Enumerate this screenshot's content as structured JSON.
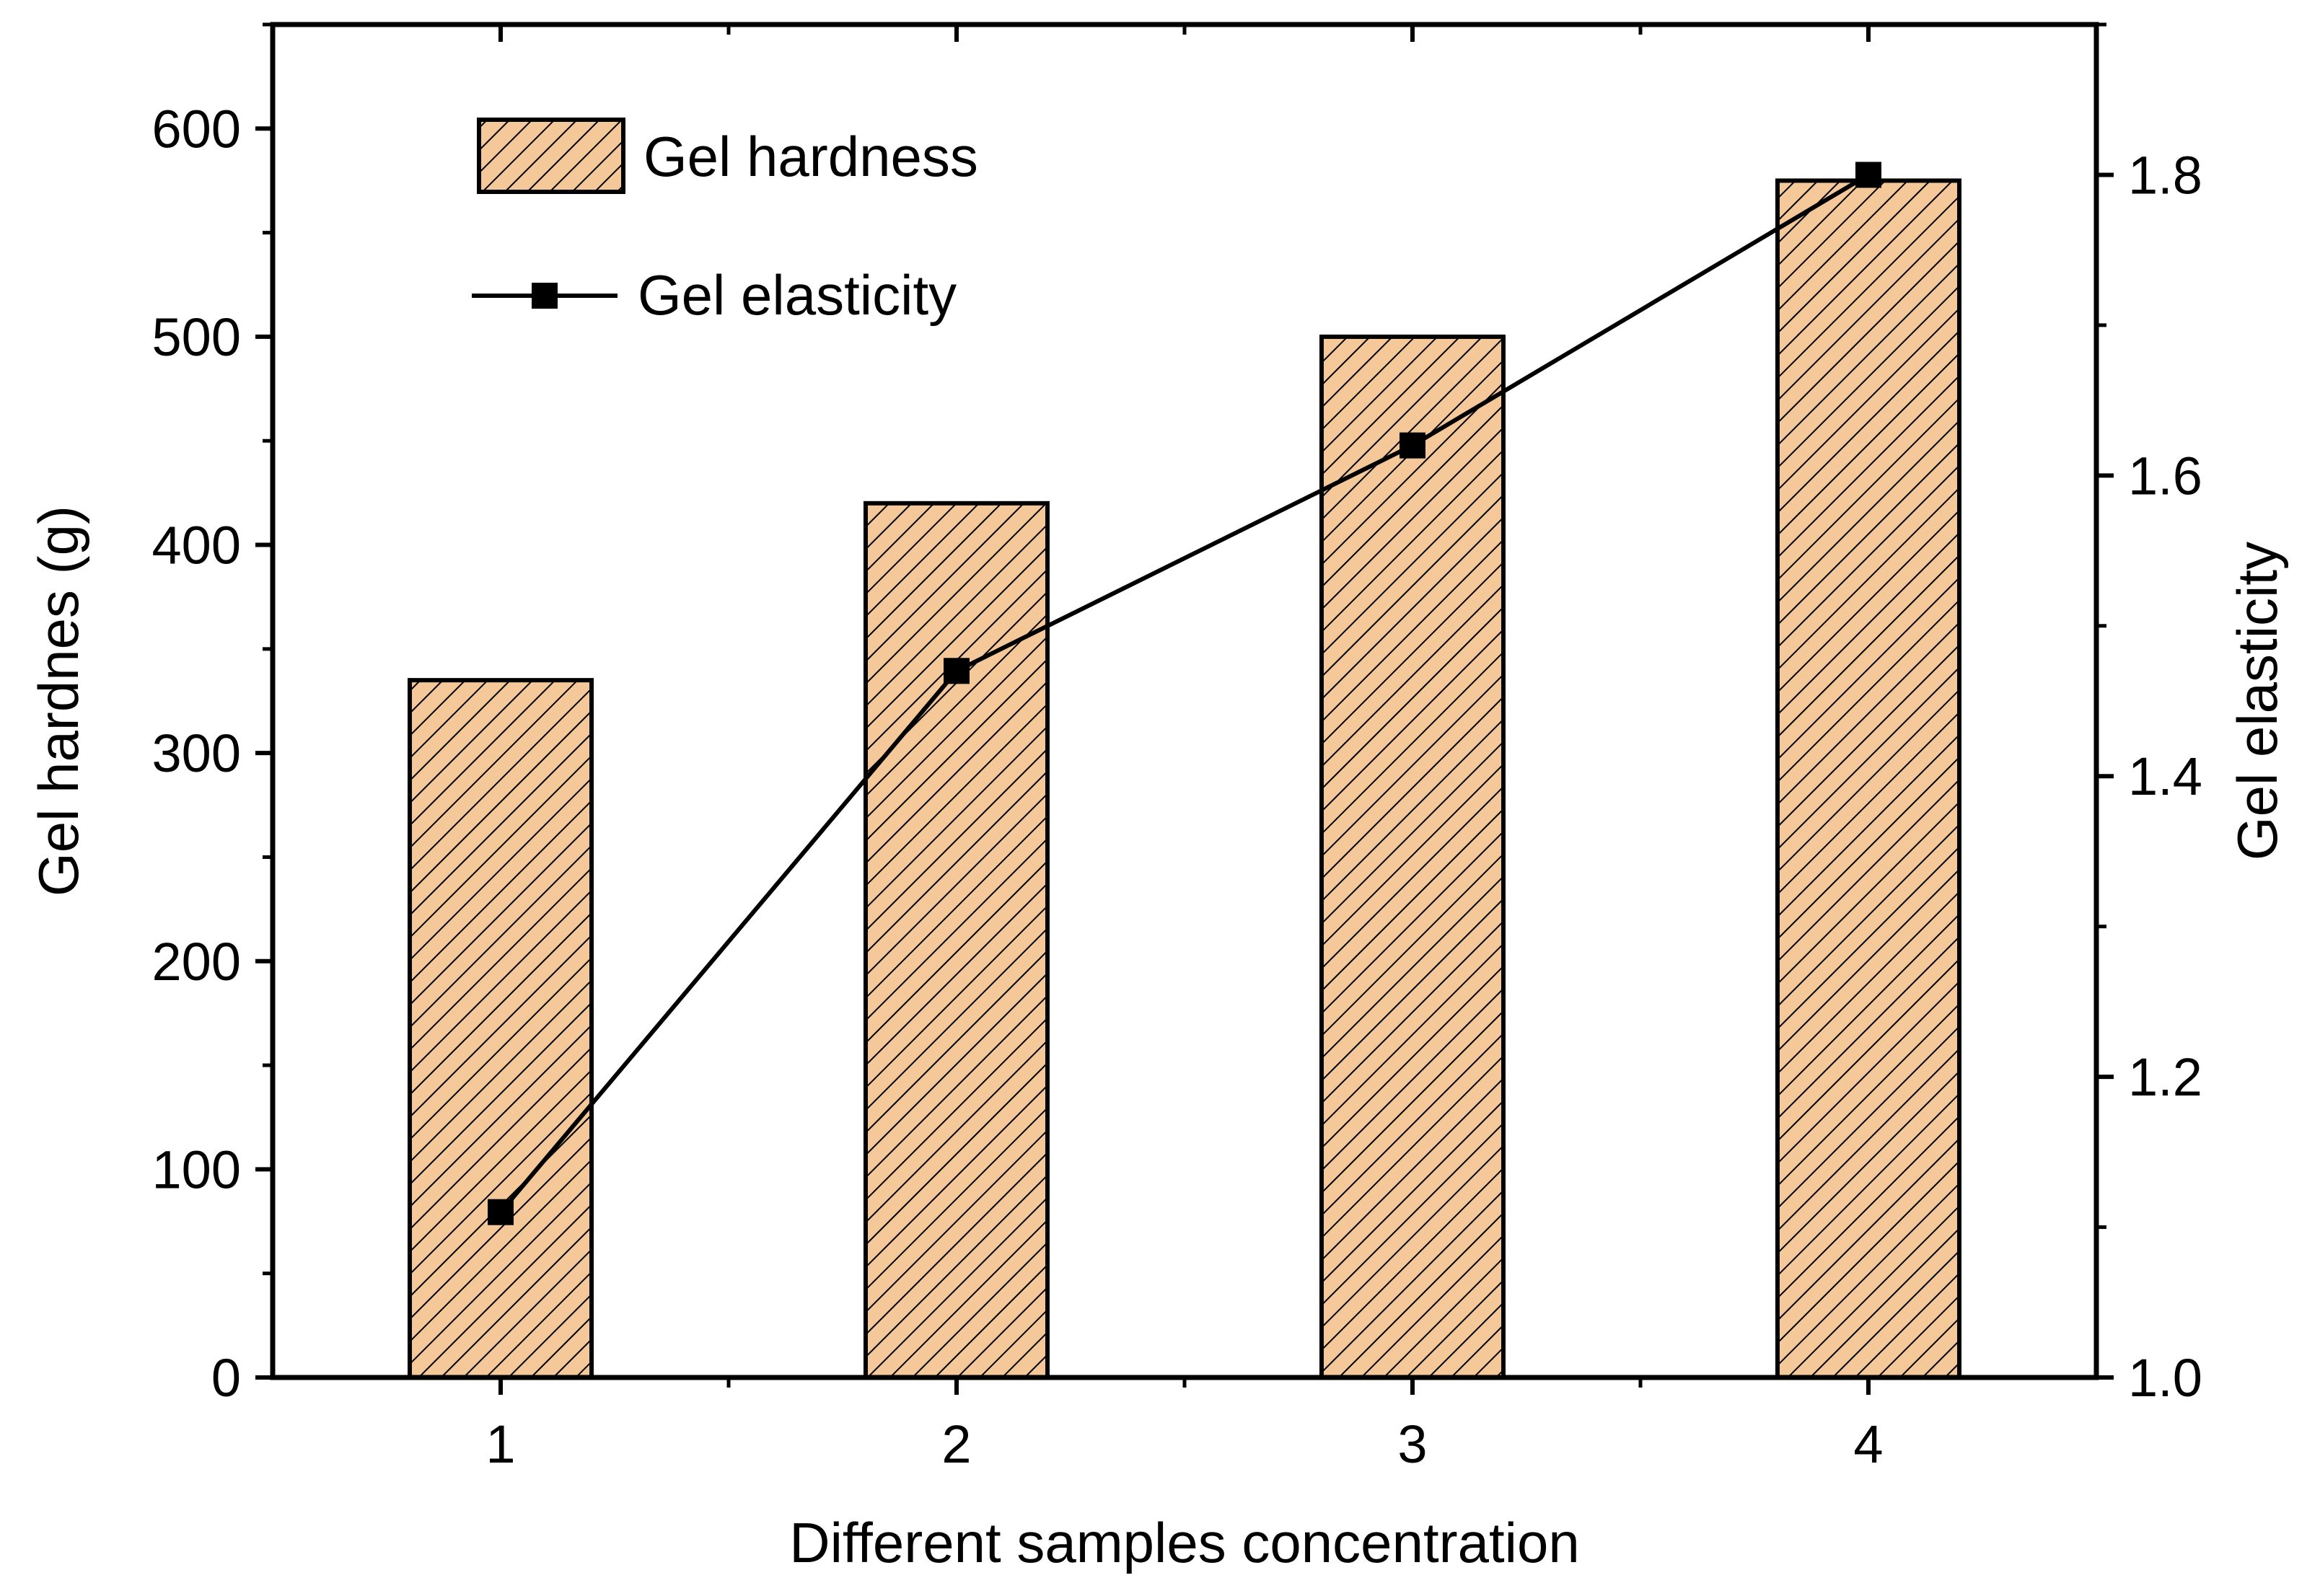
{
  "chart_data": {
    "type": "bar",
    "title": "",
    "xlabel": "Different samples concentration",
    "ylabel": "Gel hardnes (g)",
    "y2label": "Gel elasticity",
    "categories": [
      "1",
      "2",
      "3",
      "4"
    ],
    "x_range": [
      0.5,
      4.5
    ],
    "ylim": [
      0,
      650
    ],
    "y2lim": [
      1.0,
      1.9
    ],
    "yticks": [
      0,
      100,
      200,
      300,
      400,
      500,
      600
    ],
    "y2ticks": [
      1.0,
      1.2,
      1.4,
      1.6,
      1.8
    ],
    "y2tick_labels": [
      "1.0",
      "1.2",
      "1.4",
      "1.6",
      "1.8"
    ],
    "legend_position": "top-left",
    "grid": false,
    "series": [
      {
        "name": "Gel hardness",
        "kind": "bar",
        "axis": "left",
        "values": [
          335,
          420,
          500,
          575
        ],
        "fill_color": "#f5c89a",
        "hatch_color": "#000000"
      },
      {
        "name": "Gel elasticity",
        "kind": "line",
        "axis": "right",
        "marker": "square",
        "values": [
          1.11,
          1.47,
          1.62,
          1.8
        ],
        "color": "#000000"
      }
    ]
  }
}
